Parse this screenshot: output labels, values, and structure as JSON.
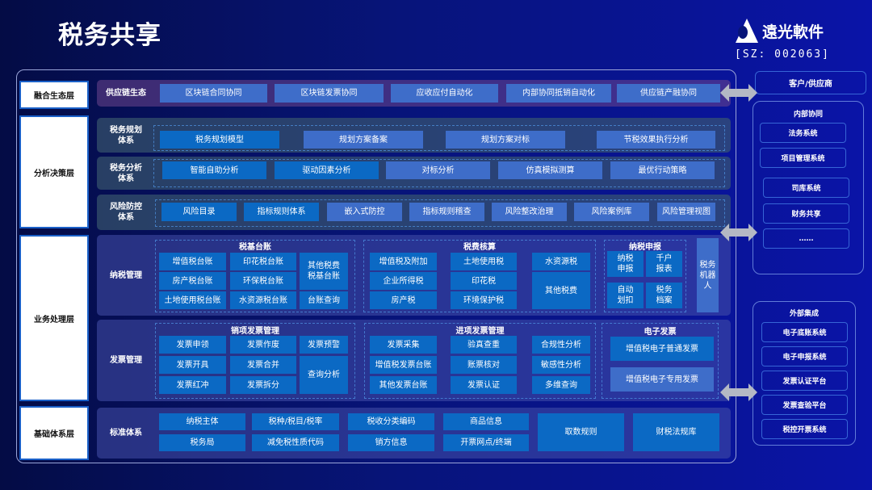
{
  "title": "税务共享",
  "logo": {
    "name": "遠光軟件",
    "code": "[SZ: 002063]"
  },
  "layers": [
    "融合生态层",
    "分析决策层",
    "业务处理层",
    "基础体系层"
  ],
  "supply": {
    "label": "供应链生态",
    "items": [
      "区块链合同协同",
      "区块链发票协同",
      "应收应付自动化",
      "内部协同抵销自动化",
      "供应链产融协同"
    ]
  },
  "planning": {
    "label": "税务规划\n体系",
    "items": [
      "税务规划模型",
      "规划方案备案",
      "规划方案对标",
      "节税效果执行分析"
    ]
  },
  "analysis": {
    "label": "税务分析\n体系",
    "items": [
      "智能自助分析",
      "驱动因素分析",
      "对标分析",
      "仿真模拟测算",
      "最优行动策略"
    ]
  },
  "risk": {
    "label": "风险防控\n体系",
    "items": [
      "风险目录",
      "指标规则体系",
      "嵌入式防控",
      "指标规则稽查",
      "风险整改治理",
      "风险案例库",
      "风险管理视图"
    ]
  },
  "taxmgmt": {
    "label": "纳税管理",
    "base": {
      "title": "税基台账",
      "items": [
        "增值税台账",
        "印花税台账",
        "其他税费\n税基台账",
        "房产税台账",
        "环保税台账",
        "土地使用税台账",
        "水资源税台账",
        "台账查询"
      ]
    },
    "calc": {
      "title": "税费核算",
      "items": [
        "增值税及附加",
        "土地使用税",
        "水资源税",
        "企业所得税",
        "印花税",
        "其他税费",
        "房产税",
        "环境保护税"
      ]
    },
    "declare": {
      "title": "纳税申报",
      "items": [
        "纳税\n申报",
        "千户\n报表",
        "自动\n划扣",
        "税务\n档案"
      ]
    },
    "robot": "税务\n机器\n人"
  },
  "invoice": {
    "label": "发票管理",
    "output": {
      "title": "销项发票管理",
      "items": [
        "发票申领",
        "发票作废",
        "发票预警",
        "发票开具",
        "发票合并",
        "查询分析",
        "发票红冲",
        "发票拆分"
      ]
    },
    "input": {
      "title": "进项发票管理",
      "items": [
        "发票采集",
        "验真查重",
        "合规性分析",
        "增值税发票台账",
        "账票核对",
        "敏感性分析",
        "其他发票台账",
        "发票认证",
        "多维查询"
      ]
    },
    "einvoice": {
      "title": "电子发票",
      "items": [
        "增值税电子普通发票",
        "增值税电子专用发票"
      ]
    }
  },
  "foundation": {
    "label": "标准体系",
    "items": [
      "纳税主体",
      "税种/税目/税率",
      "税收分类编码",
      "商品信息",
      "税务局",
      "减免税性质代码",
      "销方信息",
      "开票网点/终端",
      "取数规则",
      "财税法规库"
    ]
  },
  "right": {
    "customer": "客户/供应商",
    "internal": {
      "title": "内部协同",
      "items": [
        "法务系统",
        "项目管理系统",
        "司库系统",
        "财务共享",
        "……"
      ]
    },
    "external": {
      "title": "外部集成",
      "items": [
        "电子底账系统",
        "电子申报系统",
        "发票认证平台",
        "发票查验平台",
        "税控开票系统"
      ]
    }
  },
  "colors": {
    "dark_item": "#0b69c4",
    "light_item": "#3e6dc9",
    "background": "#071479"
  }
}
